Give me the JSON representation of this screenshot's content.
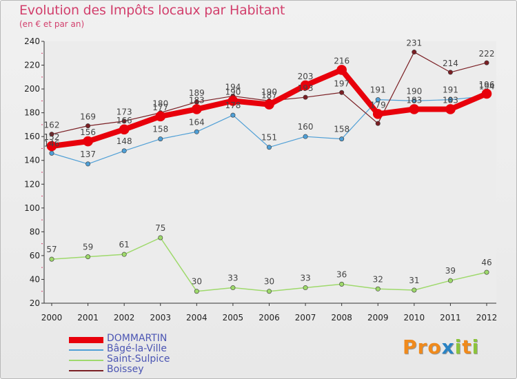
{
  "title": "Evolution des Impôts locaux par Habitant",
  "subtitle": "(en € et par an)",
  "logo": {
    "text": "Proxiti",
    "letters": [
      "P",
      "r",
      "o",
      "x",
      "i",
      "t",
      "i"
    ],
    "colors": [
      "#f08a1c",
      "#f08a1c",
      "#f08a1c",
      "#2a83c4",
      "#8cc43c",
      "#f08a1c",
      "#8cc43c"
    ]
  },
  "chart_data": {
    "type": "line",
    "categories": [
      "2000",
      "2001",
      "2002",
      "2003",
      "2004",
      "2005",
      "2006",
      "2007",
      "2008",
      "2009",
      "2010",
      "2011",
      "2012"
    ],
    "ylim": [
      20,
      240
    ],
    "yticks": [
      20,
      40,
      60,
      80,
      100,
      120,
      140,
      160,
      180,
      200,
      220,
      240
    ],
    "grid": false,
    "legend_position": "bottom-left",
    "series": [
      {
        "name": "DOMMARTIN",
        "color": "#e8000b",
        "values": [
          152,
          156,
          166,
          177,
          183,
          190,
          187,
          203,
          216,
          179,
          183,
          183,
          196
        ]
      },
      {
        "name": "Bâgé-la-Ville",
        "color": "#4f9fd6",
        "values": [
          146,
          137,
          148,
          158,
          164,
          178,
          151,
          160,
          158,
          191,
          190,
          191,
          194
        ]
      },
      {
        "name": "Saint-Sulpice",
        "color": "#9ed96b",
        "values": [
          57,
          59,
          61,
          75,
          30,
          33,
          30,
          33,
          36,
          32,
          31,
          39,
          46
        ]
      },
      {
        "name": "Boissey",
        "color": "#7a1f24",
        "values": [
          162,
          169,
          173,
          180,
          189,
          194,
          190,
          193,
          197,
          171,
          231,
          214,
          222
        ]
      }
    ],
    "value_labels": [
      {
        "text": "162",
        "series": "Boissey",
        "index": 0
      },
      {
        "text": "169",
        "series": "Boissey",
        "index": 1
      },
      {
        "text": "173",
        "series": "Boissey",
        "index": 2
      },
      {
        "text": "180",
        "series": "Boissey",
        "index": 3
      },
      {
        "text": "189",
        "series": "Boissey",
        "index": 4
      },
      {
        "text": "194",
        "series": "Boissey",
        "index": 5
      },
      {
        "text": "190",
        "series": "Boissey",
        "index": 6
      },
      {
        "text": "193",
        "series": "Boissey",
        "index": 7
      },
      {
        "text": "197",
        "series": "Boissey",
        "index": 8
      },
      {
        "text": "231",
        "series": "Boissey",
        "index": 10
      },
      {
        "text": "214",
        "series": "Boissey",
        "index": 11
      },
      {
        "text": "222",
        "series": "Boissey",
        "index": 12
      },
      {
        "text": "152",
        "series": "DOMMARTIN",
        "index": 0
      },
      {
        "text": "156",
        "series": "DOMMARTIN",
        "index": 1
      },
      {
        "text": "166",
        "series": "DOMMARTIN",
        "index": 2
      },
      {
        "text": "177",
        "series": "DOMMARTIN",
        "index": 3
      },
      {
        "text": "183",
        "series": "DOMMARTIN",
        "index": 4
      },
      {
        "text": "190",
        "series": "DOMMARTIN",
        "index": 5
      },
      {
        "text": "187",
        "series": "DOMMARTIN",
        "index": 6
      },
      {
        "text": "203",
        "series": "DOMMARTIN",
        "index": 7
      },
      {
        "text": "216",
        "series": "DOMMARTIN",
        "index": 8
      },
      {
        "text": "179",
        "series": "DOMMARTIN",
        "index": 9
      },
      {
        "text": "183",
        "series": "DOMMARTIN",
        "index": 10
      },
      {
        "text": "183",
        "series": "DOMMARTIN",
        "index": 11
      },
      {
        "text": "196",
        "series": "DOMMARTIN",
        "index": 12
      },
      {
        "text": "146",
        "series": "Bâgé-la-Ville",
        "index": 0
      },
      {
        "text": "137",
        "series": "Bâgé-la-Ville",
        "index": 1
      },
      {
        "text": "148",
        "series": "Bâgé-la-Ville",
        "index": 2
      },
      {
        "text": "158",
        "series": "Bâgé-la-Ville",
        "index": 3
      },
      {
        "text": "164",
        "series": "Bâgé-la-Ville",
        "index": 4
      },
      {
        "text": "178",
        "series": "Bâgé-la-Ville",
        "index": 5
      },
      {
        "text": "151",
        "series": "Bâgé-la-Ville",
        "index": 6
      },
      {
        "text": "160",
        "series": "Bâgé-la-Ville",
        "index": 7
      },
      {
        "text": "158",
        "series": "Bâgé-la-Ville",
        "index": 8
      },
      {
        "text": "191",
        "series": "Bâgé-la-Ville",
        "index": 9
      },
      {
        "text": "190",
        "series": "Bâgé-la-Ville",
        "index": 10
      },
      {
        "text": "191",
        "series": "Bâgé-la-Ville",
        "index": 11
      },
      {
        "text": "194",
        "series": "Bâgé-la-Ville",
        "index": 12
      },
      {
        "text": "57",
        "series": "Saint-Sulpice",
        "index": 0
      },
      {
        "text": "59",
        "series": "Saint-Sulpice",
        "index": 1
      },
      {
        "text": "61",
        "series": "Saint-Sulpice",
        "index": 2
      },
      {
        "text": "75",
        "series": "Saint-Sulpice",
        "index": 3
      },
      {
        "text": "30",
        "series": "Saint-Sulpice",
        "index": 4
      },
      {
        "text": "33",
        "series": "Saint-Sulpice",
        "index": 5
      },
      {
        "text": "30",
        "series": "Saint-Sulpice",
        "index": 6
      },
      {
        "text": "33",
        "series": "Saint-Sulpice",
        "index": 7
      },
      {
        "text": "36",
        "series": "Saint-Sulpice",
        "index": 8
      },
      {
        "text": "32",
        "series": "Saint-Sulpice",
        "index": 9
      },
      {
        "text": "31",
        "series": "Saint-Sulpice",
        "index": 10
      },
      {
        "text": "39",
        "series": "Saint-Sulpice",
        "index": 11
      },
      {
        "text": "46",
        "series": "Saint-Sulpice",
        "index": 12
      }
    ]
  }
}
